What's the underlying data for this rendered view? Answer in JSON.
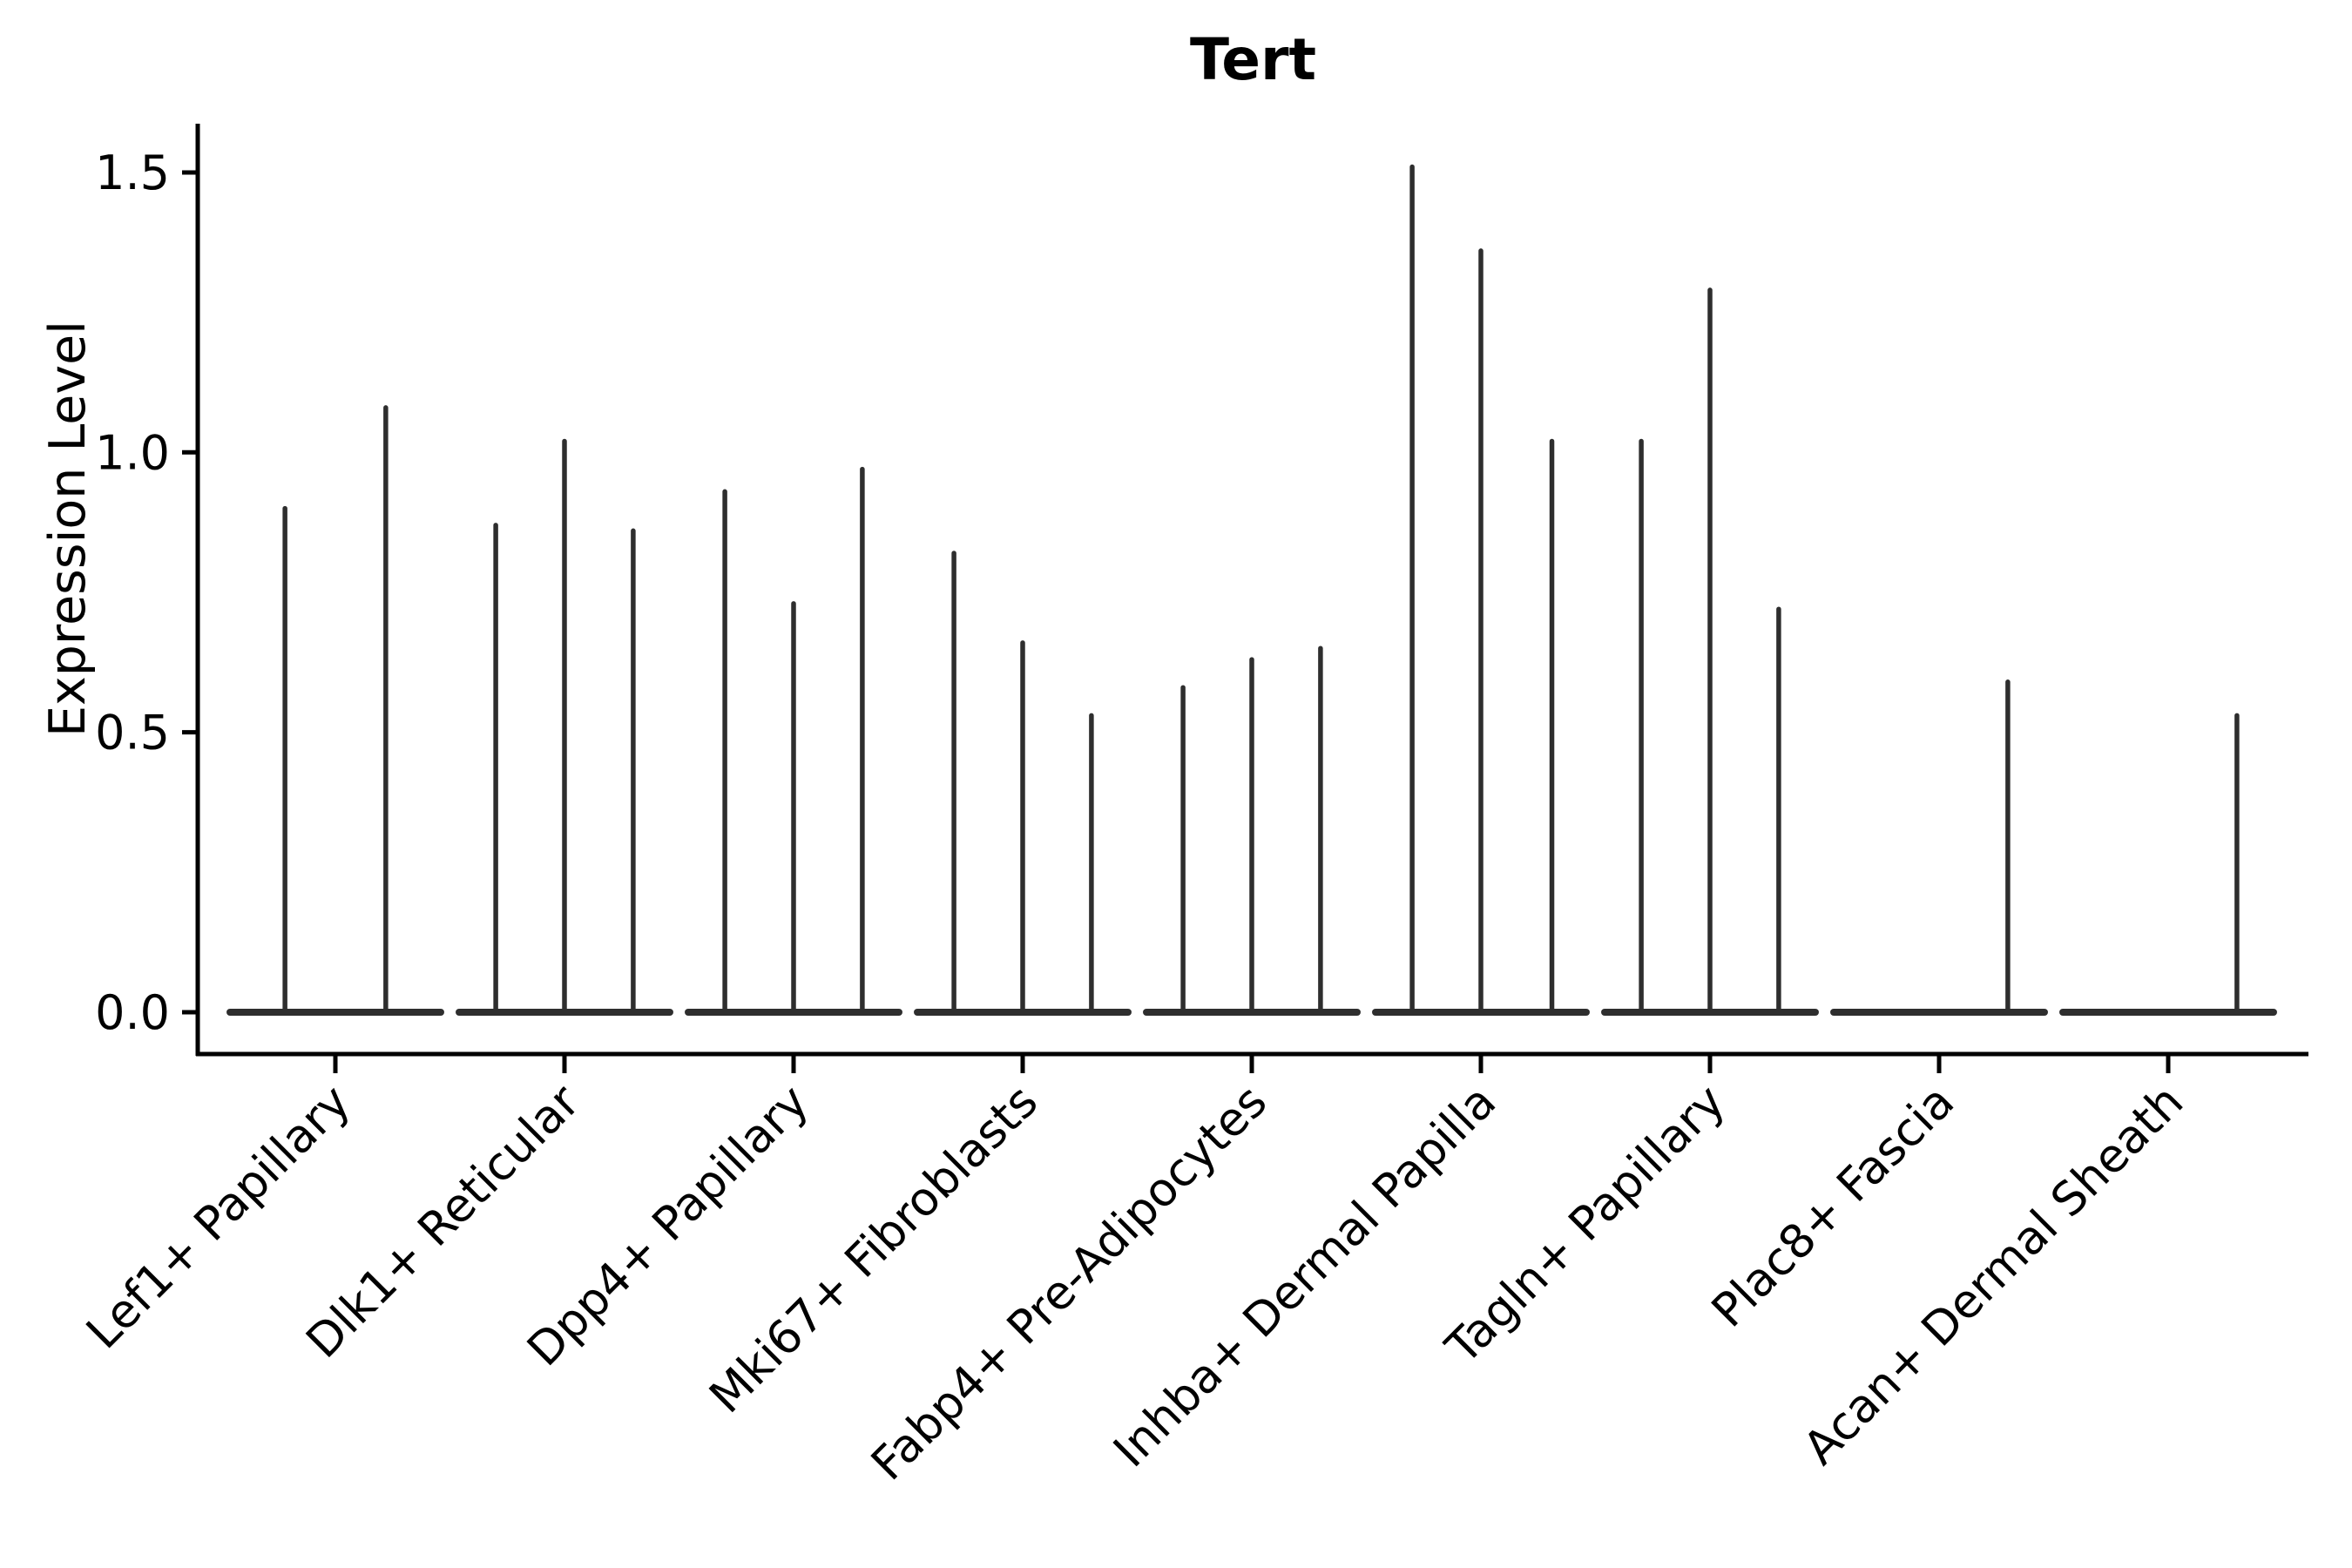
{
  "figure": {
    "title": "Tert",
    "ylabel": "Expression Level",
    "background_color": "#ffffff",
    "ink_color": "#000000",
    "violin_color": "#2e2e2e"
  },
  "chart_data": {
    "type": "violin",
    "title": "Tert",
    "xlabel": "",
    "ylabel": "Expression Level",
    "ylim": [
      -0.075,
      1.59
    ],
    "ytick_labels": [
      "0.0",
      "0.5",
      "1.0",
      "1.5"
    ],
    "ytick_values": [
      0.0,
      0.5,
      1.0,
      1.5
    ],
    "grid": false,
    "legend_position": "none",
    "x_tick_rotation_degrees": 45,
    "categories": [
      "Lef1+ Papillary",
      "Dlk1+ Reticular",
      "Dpp4+ Papillary",
      "Mki67+ Fibroblasts",
      "Fabp4+ Pre-Adipocytes",
      "Inhba+ Dermal Papilla",
      "Tagln+ Papillary",
      "Plac8+ Fascia",
      "Acan+ Dermal Sheath"
    ],
    "baseline_halfwidth_units": 0.46,
    "groups": [
      {
        "category": "Lef1+ Papillary",
        "violins": [
          {
            "dx": -0.22,
            "max": 0.9
          },
          {
            "dx": 0.22,
            "max": 1.08
          }
        ]
      },
      {
        "category": "Dlk1+ Reticular",
        "violins": [
          {
            "dx": -0.3,
            "max": 0.87
          },
          {
            "dx": 0.0,
            "max": 1.02
          },
          {
            "dx": 0.3,
            "max": 0.86
          }
        ]
      },
      {
        "category": "Dpp4+ Papillary",
        "violins": [
          {
            "dx": -0.3,
            "max": 0.93
          },
          {
            "dx": 0.0,
            "max": 0.73
          },
          {
            "dx": 0.3,
            "max": 0.97
          }
        ]
      },
      {
        "category": "Mki67+ Fibroblasts",
        "violins": [
          {
            "dx": -0.3,
            "max": 0.82
          },
          {
            "dx": 0.0,
            "max": 0.66
          },
          {
            "dx": 0.3,
            "max": 0.53
          }
        ]
      },
      {
        "category": "Fabp4+ Pre-Adipocytes",
        "violins": [
          {
            "dx": -0.3,
            "max": 0.58
          },
          {
            "dx": 0.0,
            "max": 0.63
          },
          {
            "dx": 0.3,
            "max": 0.65
          }
        ]
      },
      {
        "category": "Inhba+ Dermal Papilla",
        "violins": [
          {
            "dx": -0.3,
            "max": 1.51
          },
          {
            "dx": 0.0,
            "max": 1.36
          },
          {
            "dx": 0.31,
            "max": 1.02
          }
        ]
      },
      {
        "category": "Tagln+ Papillary",
        "violins": [
          {
            "dx": -0.3,
            "max": 1.02
          },
          {
            "dx": 0.0,
            "max": 1.29
          },
          {
            "dx": 0.3,
            "max": 0.72
          }
        ]
      },
      {
        "category": "Plac8+ Fascia",
        "violins": [
          {
            "dx": 0.3,
            "max": 0.59
          }
        ]
      },
      {
        "category": "Acan+ Dermal Sheath",
        "violins": [
          {
            "dx": 0.3,
            "max": 0.53
          }
        ]
      }
    ]
  }
}
